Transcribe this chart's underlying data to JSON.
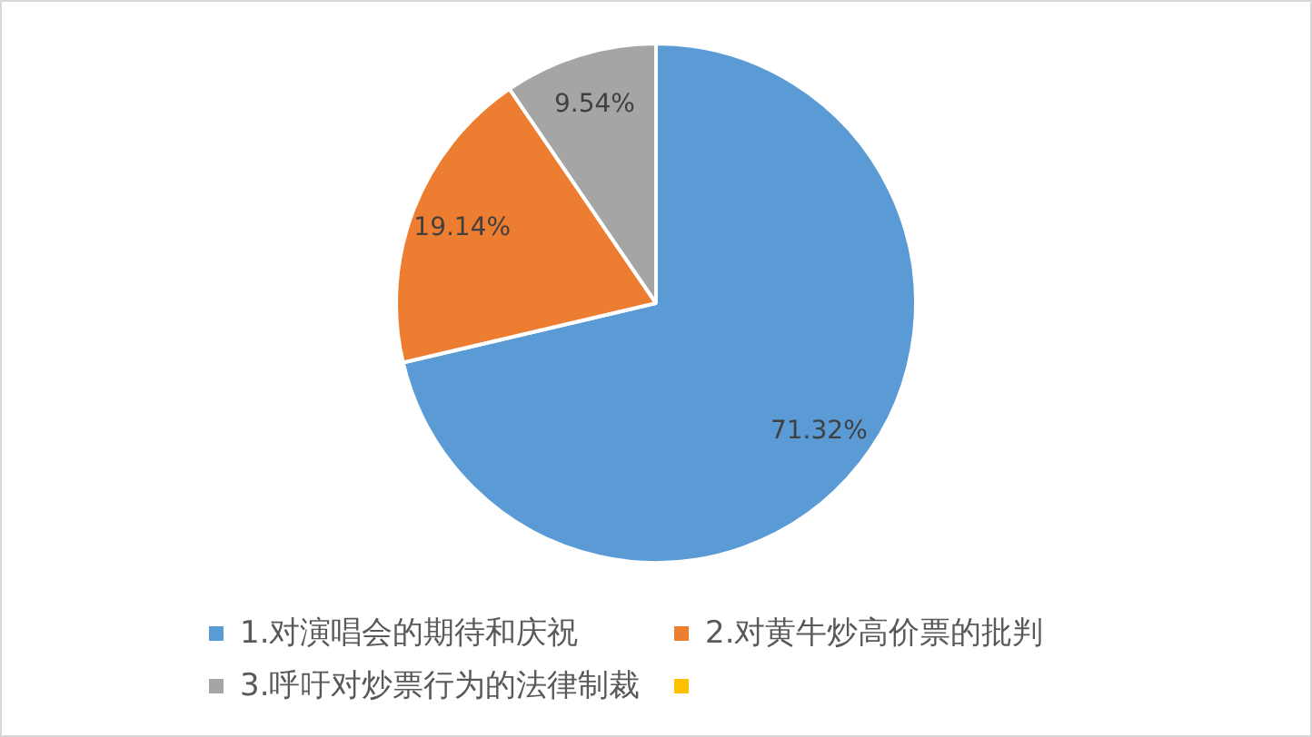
{
  "chart_data": {
    "type": "pie",
    "categories": [
      "1.对演唱会的期待和庆祝",
      "2.对黄牛炒高价票的批判",
      "3.呼吁对炒票行为的法律制裁",
      null
    ],
    "values": [
      71.32,
      19.14,
      9.54,
      0
    ],
    "colors": [
      "#5b9bd5",
      "#ed7d31",
      "#a5a5a5",
      "#ffc000"
    ],
    "value_labels": [
      "71.32%",
      "19.14%",
      "9.54%",
      null
    ],
    "legend": "bottom"
  }
}
